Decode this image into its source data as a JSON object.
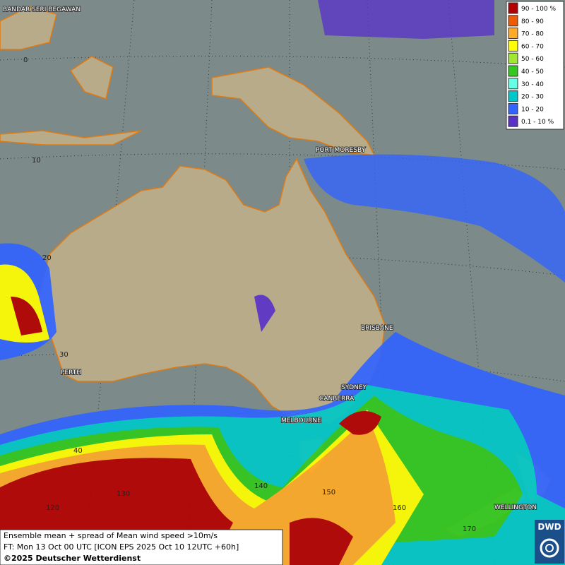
{
  "legend": {
    "items": [
      {
        "label": "90 - 100 %",
        "color": "#b40000"
      },
      {
        "label": "80 - 90",
        "color": "#f05a00"
      },
      {
        "label": "70 - 80",
        "color": "#ffaa28"
      },
      {
        "label": "60 - 70",
        "color": "#ffff00"
      },
      {
        "label": "50 - 60",
        "color": "#a0e632"
      },
      {
        "label": "40 - 50",
        "color": "#32c81e"
      },
      {
        "label": "30 - 40",
        "color": "#64ffe6"
      },
      {
        "label": "20 - 30",
        "color": "#00c8c8"
      },
      {
        "label": "10 - 20",
        "color": "#3264ff"
      },
      {
        "label": "0.1 - 10 %",
        "color": "#5a32c8"
      }
    ]
  },
  "cities": [
    "BANDAR SERI BEGAWAN",
    "PORT MORESBY",
    "BRISBANE",
    "SYDNEY",
    "CANBERRA",
    "MELBOURNE",
    "PERTH",
    "WELLINGTON"
  ],
  "lat_labels": [
    0,
    10,
    20,
    30,
    40
  ],
  "lon_labels": [
    120,
    130,
    140,
    150,
    160,
    170
  ],
  "caption": {
    "line1": "Ensemble mean + spread of Mean wind speed >10m/s",
    "line2": "FT: Mon 13 Oct 00 UTC [ICON EPS 2025 Oct 10 12UTC +60h]",
    "line3": "©2025 Deutscher Wetterdienst"
  },
  "logo": "DWD"
}
